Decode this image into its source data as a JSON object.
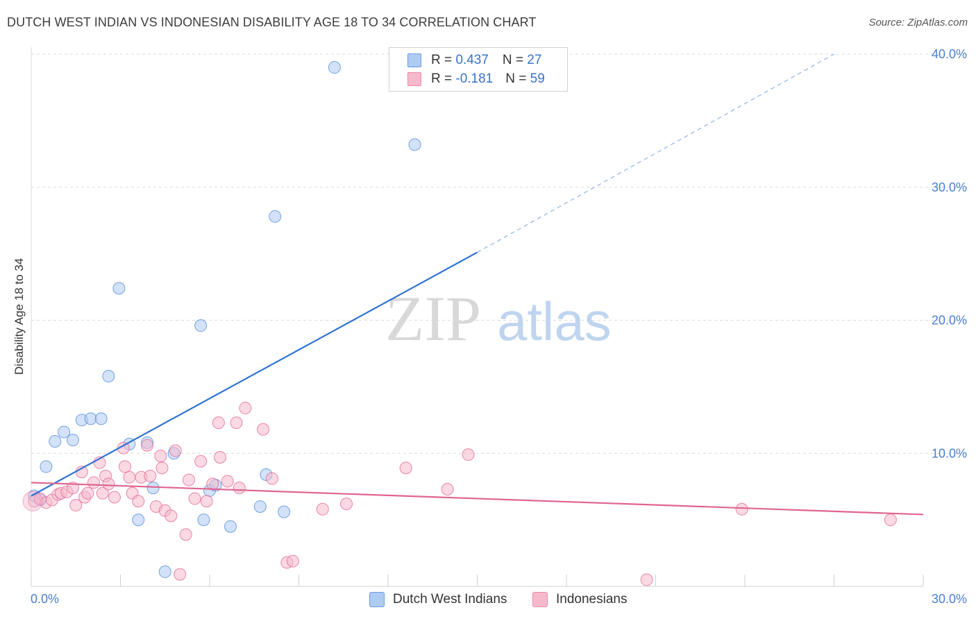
{
  "header": {
    "title": "DUTCH WEST INDIAN VS INDONESIAN DISABILITY AGE 18 TO 34 CORRELATION CHART",
    "source": "Source: ZipAtlas.com"
  },
  "legend": {
    "rows": [
      {
        "r_label": "R = ",
        "r_value": "0.437",
        "n_label": "N = ",
        "n_value": "27",
        "color": "#aecbf2"
      },
      {
        "r_label": "R = ",
        "r_value": "-0.181",
        "n_label": "N = ",
        "n_value": "59",
        "color": "#f6b9cc"
      }
    ]
  },
  "bottom_legend": {
    "items": [
      {
        "label": "Dutch West Indians",
        "color": "#aecbf2"
      },
      {
        "label": "Indonesians",
        "color": "#f6b9cc"
      }
    ]
  },
  "watermark": {
    "part1": "ZIP",
    "part2": "atlas"
  },
  "chart_data": {
    "type": "scatter",
    "ylabel": "Disability Age 18 to 34",
    "xlim": [
      0,
      30
    ],
    "ylim": [
      0,
      40
    ],
    "x_ticks": [
      "0.0%",
      "30.0%"
    ],
    "y_ticks": [
      {
        "value": 10,
        "label": "10.0%"
      },
      {
        "value": 20,
        "label": "20.0%"
      },
      {
        "value": 30,
        "label": "30.0%"
      },
      {
        "value": 40,
        "label": "40.0%"
      }
    ],
    "grid": "horizontal dashed",
    "series": [
      {
        "name": "Dutch West Indians",
        "color": "#4a86d8",
        "fill": "#aecbf2",
        "points": [
          [
            0.1,
            6.8
          ],
          [
            0.3,
            6.5
          ],
          [
            0.5,
            9.0
          ],
          [
            0.8,
            10.9
          ],
          [
            1.1,
            11.6
          ],
          [
            1.4,
            11.0
          ],
          [
            1.7,
            12.5
          ],
          [
            2.0,
            12.6
          ],
          [
            2.35,
            12.6
          ],
          [
            2.6,
            15.8
          ],
          [
            2.95,
            22.4
          ],
          [
            3.3,
            10.7
          ],
          [
            3.6,
            5.0
          ],
          [
            3.9,
            10.8
          ],
          [
            4.1,
            7.4
          ],
          [
            4.5,
            1.1
          ],
          [
            4.8,
            10.0
          ],
          [
            5.7,
            19.6
          ],
          [
            5.8,
            5.0
          ],
          [
            6.0,
            7.2
          ],
          [
            6.2,
            7.6
          ],
          [
            6.7,
            4.5
          ],
          [
            7.7,
            6.0
          ],
          [
            7.9,
            8.4
          ],
          [
            8.2,
            27.8
          ],
          [
            8.5,
            5.6
          ],
          [
            10.2,
            39.0
          ],
          [
            12.9,
            33.2
          ]
        ],
        "trend": {
          "x0": 0,
          "y0": 6.8,
          "x1": 15,
          "y1": 25.1,
          "x_dash_end": 27,
          "y_dash_end": 40
        }
      },
      {
        "name": "Indonesians",
        "color": "#e2628f",
        "fill": "#f6b9cc",
        "points": [
          [
            0.1,
            6.4
          ],
          [
            0.3,
            6.6
          ],
          [
            0.5,
            6.3
          ],
          [
            0.7,
            6.5
          ],
          [
            0.9,
            6.9
          ],
          [
            1.0,
            7.0
          ],
          [
            1.2,
            7.1
          ],
          [
            1.4,
            7.4
          ],
          [
            1.5,
            6.1
          ],
          [
            1.7,
            8.6
          ],
          [
            1.8,
            6.7
          ],
          [
            1.9,
            7.0
          ],
          [
            2.1,
            7.8
          ],
          [
            2.3,
            9.3
          ],
          [
            2.4,
            7.0
          ],
          [
            2.5,
            8.3
          ],
          [
            2.6,
            7.7
          ],
          [
            2.8,
            6.7
          ],
          [
            3.1,
            10.4
          ],
          [
            3.15,
            9.0
          ],
          [
            3.3,
            8.2
          ],
          [
            3.4,
            7.0
          ],
          [
            3.6,
            6.4
          ],
          [
            3.7,
            8.2
          ],
          [
            3.9,
            10.6
          ],
          [
            4.0,
            8.3
          ],
          [
            4.2,
            6.0
          ],
          [
            4.35,
            9.8
          ],
          [
            4.4,
            8.9
          ],
          [
            4.5,
            5.7
          ],
          [
            4.7,
            5.3
          ],
          [
            4.85,
            10.2
          ],
          [
            5.0,
            0.9
          ],
          [
            5.2,
            3.9
          ],
          [
            5.3,
            8.0
          ],
          [
            5.5,
            6.6
          ],
          [
            5.7,
            9.4
          ],
          [
            5.9,
            6.4
          ],
          [
            6.1,
            7.7
          ],
          [
            6.3,
            12.3
          ],
          [
            6.35,
            9.7
          ],
          [
            6.6,
            7.9
          ],
          [
            6.9,
            12.3
          ],
          [
            7.0,
            7.4
          ],
          [
            7.2,
            13.4
          ],
          [
            7.8,
            11.8
          ],
          [
            8.1,
            8.1
          ],
          [
            8.6,
            1.8
          ],
          [
            8.8,
            1.9
          ],
          [
            9.8,
            5.8
          ],
          [
            10.6,
            6.2
          ],
          [
            12.6,
            8.9
          ],
          [
            14.0,
            7.3
          ],
          [
            14.7,
            9.9
          ],
          [
            20.7,
            0.5
          ],
          [
            23.9,
            5.8
          ],
          [
            28.9,
            5.0
          ]
        ],
        "trend": {
          "x0": 0,
          "y0": 7.8,
          "x1": 30,
          "y1": 5.4
        }
      }
    ]
  }
}
